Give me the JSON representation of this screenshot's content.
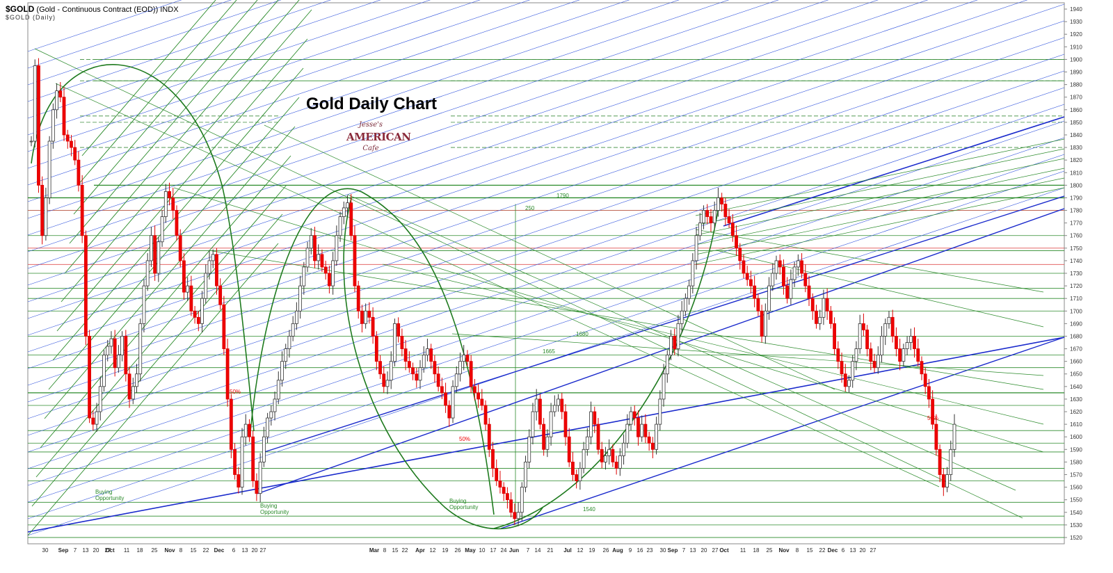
{
  "header": {
    "symbol": "$GOLD",
    "description": "(Gold - Continuous Contract (EOD)) INDX",
    "subline": "$GOLD (Daily)"
  },
  "chart_data": {
    "type": "candlestick",
    "title": "Gold Daily Chart",
    "logo": {
      "line1": "Jesse's",
      "line2": "AMERICAN",
      "line3": "Cafe"
    },
    "ylim": [
      1515,
      1945
    ],
    "y_ticks": [
      1520,
      1530,
      1540,
      1550,
      1560,
      1570,
      1580,
      1590,
      1600,
      1610,
      1620,
      1630,
      1640,
      1650,
      1660,
      1670,
      1680,
      1690,
      1700,
      1710,
      1720,
      1730,
      1740,
      1750,
      1760,
      1770,
      1780,
      1790,
      1800,
      1810,
      1820,
      1830,
      1840,
      1850,
      1860,
      1870,
      1880,
      1890,
      1900,
      1910,
      1920,
      1930,
      1940
    ],
    "x_labels": [
      "30",
      "Sep",
      "7",
      "13",
      "20",
      "27",
      "Oct",
      "11",
      "18",
      "25",
      "Nov",
      "8",
      "15",
      "22",
      "Dec",
      "6",
      "13",
      "20",
      "27",
      "Mar",
      "8",
      "15",
      "22",
      "Apr",
      "12",
      "19",
      "26",
      "May",
      "10",
      "17",
      "24",
      "Jun",
      "7",
      "14",
      "21",
      "Jul",
      "12",
      "19",
      "26",
      "Aug",
      "9",
      "16",
      "23",
      "30",
      "Sep",
      "7",
      "13",
      "20",
      "27",
      "Oct",
      "11",
      "18",
      "25",
      "Nov",
      "8",
      "15",
      "22",
      "Dec",
      "6",
      "13",
      "20",
      "27"
    ],
    "annotations": {
      "buying1": "Buying\nOpportunity",
      "buying2": "Buying\nOpportunity",
      "buying3": "Buying\nOpportunity",
      "pct1": "50%",
      "pct2": "50%",
      "pct3": "50%",
      "lvl_1790": "1790",
      "lvl_250": "250",
      "lvl_1680": "1680",
      "lvl_1665": "1665",
      "lvl_1540": "1540"
    },
    "horizontal_levels_green": [
      1900,
      1883,
      1800,
      1790,
      1780,
      1760,
      1748,
      1730,
      1718,
      1710,
      1700,
      1680,
      1665,
      1655,
      1635,
      1625,
      1605,
      1595,
      1588,
      1575,
      1565,
      1548,
      1537,
      1530,
      1520
    ],
    "horizontal_levels_red": [
      1780,
      1750,
      1737
    ],
    "horizontal_levels_dashed": [
      1900,
      1883,
      1855,
      1850,
      1830
    ],
    "closes": [
      1835,
      1895,
      1800,
      1760,
      1790,
      1835,
      1860,
      1875,
      1870,
      1840,
      1835,
      1830,
      1820,
      1800,
      1760,
      1680,
      1615,
      1610,
      1620,
      1640,
      1665,
      1672,
      1678,
      1655,
      1665,
      1680,
      1650,
      1630,
      1640,
      1650,
      1690,
      1720,
      1740,
      1760,
      1730,
      1755,
      1775,
      1795,
      1790,
      1780,
      1760,
      1740,
      1715,
      1720,
      1700,
      1695,
      1690,
      1710,
      1730,
      1740,
      1745,
      1720,
      1705,
      1670,
      1630,
      1590,
      1570,
      1560,
      1600,
      1610,
      1600,
      1565,
      1555,
      1580,
      1600,
      1615,
      1620,
      1630,
      1645,
      1660,
      1670,
      1680,
      1690,
      1700,
      1720,
      1735,
      1750,
      1760,
      1740,
      1745,
      1735,
      1730,
      1720,
      1740,
      1760,
      1775,
      1782,
      1786,
      1760,
      1720,
      1700,
      1690,
      1700,
      1695,
      1680,
      1660,
      1650,
      1640,
      1645,
      1660,
      1690,
      1680,
      1670,
      1660,
      1655,
      1650,
      1645,
      1655,
      1665,
      1670,
      1660,
      1650,
      1640,
      1635,
      1625,
      1615,
      1640,
      1650,
      1660,
      1665,
      1660,
      1640,
      1635,
      1630,
      1625,
      1610,
      1590,
      1575,
      1565,
      1560,
      1555,
      1550,
      1540,
      1535,
      1540,
      1560,
      1580,
      1600,
      1620,
      1630,
      1610,
      1590,
      1600,
      1620,
      1625,
      1630,
      1620,
      1600,
      1580,
      1570,
      1565,
      1575,
      1590,
      1600,
      1620,
      1610,
      1590,
      1580,
      1585,
      1590,
      1580,
      1575,
      1585,
      1595,
      1610,
      1620,
      1615,
      1600,
      1610,
      1600,
      1595,
      1590,
      1610,
      1630,
      1650,
      1665,
      1680,
      1670,
      1690,
      1700,
      1710,
      1720,
      1740,
      1760,
      1770,
      1780,
      1775,
      1770,
      1780,
      1790,
      1785,
      1775,
      1770,
      1760,
      1750,
      1740,
      1730,
      1725,
      1720,
      1710,
      1700,
      1680,
      1700,
      1720,
      1730,
      1740,
      1735,
      1720,
      1710,
      1725,
      1735,
      1740,
      1730,
      1720,
      1710,
      1700,
      1690,
      1695,
      1710,
      1700,
      1690,
      1670,
      1660,
      1650,
      1640,
      1645,
      1660,
      1670,
      1690,
      1685,
      1670,
      1660,
      1655,
      1665,
      1680,
      1690,
      1695,
      1680,
      1670,
      1660,
      1670,
      1675,
      1680,
      1670,
      1660,
      1650,
      1640,
      1630,
      1610,
      1590,
      1570,
      1560,
      1570,
      1590,
      1610
    ]
  }
}
